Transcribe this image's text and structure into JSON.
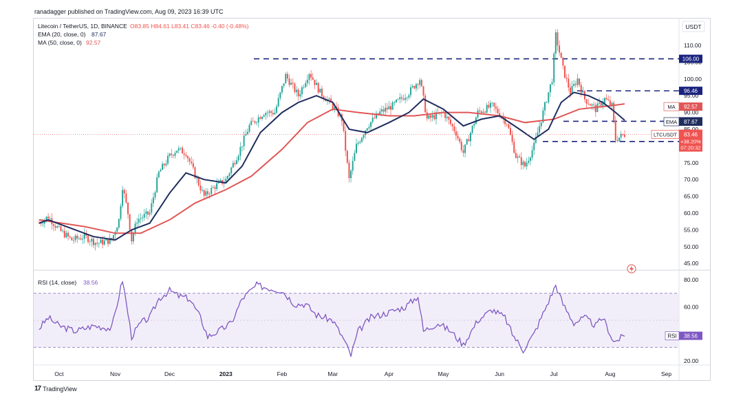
{
  "publisher": "ranadagger published on TradingView.com, Aug 09, 2023 16:39 UTC",
  "logo_text": "TradingView",
  "currency": "USDT",
  "header": {
    "symbol": "Litecoin / TetherUS, 1D, BINANCE",
    "ohlc": [
      {
        "label": "O",
        "value": "83.85"
      },
      {
        "label": "H",
        "value": "84.61"
      },
      {
        "label": "L",
        "value": "83.41"
      },
      {
        "label": "C",
        "value": "83.46"
      }
    ],
    "change": "-0.40 (-0.48%)",
    "ema_label": "EMA (20, close, 0)",
    "ema_value": "87.67",
    "ma_label": "MA (50, close, 0)",
    "ma_value": "92.57"
  },
  "rsi_panel": {
    "label": "RSI (14, close)",
    "value": "38.56",
    "tag": "RSI",
    "ticks": [
      "80.00",
      "60.00",
      "40.00",
      "20.00"
    ]
  },
  "colors": {
    "up": "#26a69a",
    "down": "#ef5350",
    "ema": "#1e2c5e",
    "ma": "#e05656",
    "levels": "#1a237e",
    "rsi": "#7e57c2"
  },
  "chart_data": [
    {
      "type": "candlestick",
      "x_ticks": [
        "Oct",
        "Nov",
        "Dec",
        "2023",
        "Feb",
        "Mar",
        "Apr",
        "May",
        "Jun",
        "Jul",
        "Aug",
        "Sep"
      ],
      "y_ticks": [
        "110.00",
        "105.00",
        "100.00",
        "95.00",
        "90.00",
        "85.00",
        "80.00",
        "75.00",
        "70.00",
        "65.00",
        "60.00",
        "55.00",
        "50.00",
        "45.00"
      ],
      "ylim": [
        43,
        118
      ],
      "price_tag": {
        "symbol": "LTCUSDT",
        "value": "83.46",
        "change": "+38.20%",
        "countdown": "07:20:32"
      },
      "ema_tag": {
        "name": "EMA",
        "value": "87.67"
      },
      "ma_tag": {
        "name": "MA",
        "value": "92.57"
      },
      "horizontal_levels": [
        {
          "value": 106.0,
          "label": "106.00"
        },
        {
          "value": 96.46,
          "label": "96.46"
        },
        {
          "value": 87.37,
          "label": "87.37"
        },
        {
          "value": 81.36,
          "label": "81.36"
        }
      ],
      "close_path": [
        [
          "2022-09-20",
          57
        ],
        [
          "2022-09-25",
          59
        ],
        [
          "2022-10-01",
          55
        ],
        [
          "2022-10-08",
          52
        ],
        [
          "2022-10-15",
          53
        ],
        [
          "2022-10-22",
          51
        ],
        [
          "2022-10-30",
          52
        ],
        [
          "2022-11-03",
          58
        ],
        [
          "2022-11-05",
          68
        ],
        [
          "2022-11-08",
          60
        ],
        [
          "2022-11-10",
          52
        ],
        [
          "2022-11-13",
          58
        ],
        [
          "2022-11-20",
          60
        ],
        [
          "2022-11-25",
          72
        ],
        [
          "2022-12-01",
          77
        ],
        [
          "2022-12-05",
          79
        ],
        [
          "2022-12-10",
          78
        ],
        [
          "2022-12-16",
          70
        ],
        [
          "2022-12-20",
          65
        ],
        [
          "2022-12-26",
          68
        ],
        [
          "2023-01-01",
          70
        ],
        [
          "2023-01-08",
          78
        ],
        [
          "2023-01-14",
          86
        ],
        [
          "2023-01-22",
          90
        ],
        [
          "2023-01-28",
          90
        ],
        [
          "2023-02-03",
          101
        ],
        [
          "2023-02-10",
          95
        ],
        [
          "2023-02-16",
          102
        ],
        [
          "2023-02-22",
          96
        ],
        [
          "2023-03-01",
          92
        ],
        [
          "2023-03-06",
          88
        ],
        [
          "2023-03-10",
          70
        ],
        [
          "2023-03-14",
          80
        ],
        [
          "2023-03-20",
          86
        ],
        [
          "2023-03-27",
          90
        ],
        [
          "2023-04-03",
          92
        ],
        [
          "2023-04-12",
          96
        ],
        [
          "2023-04-18",
          100
        ],
        [
          "2023-04-22",
          88
        ],
        [
          "2023-05-01",
          90
        ],
        [
          "2023-05-08",
          84
        ],
        [
          "2023-05-12",
          78
        ],
        [
          "2023-05-20",
          90
        ],
        [
          "2023-05-28",
          92
        ],
        [
          "2023-06-05",
          87
        ],
        [
          "2023-06-10",
          77
        ],
        [
          "2023-06-15",
          74
        ],
        [
          "2023-06-20",
          80
        ],
        [
          "2023-06-25",
          90
        ],
        [
          "2023-06-30",
          100
        ],
        [
          "2023-07-02",
          113
        ],
        [
          "2023-07-06",
          103
        ],
        [
          "2023-07-10",
          96
        ],
        [
          "2023-07-14",
          100
        ],
        [
          "2023-07-18",
          94
        ],
        [
          "2023-07-24",
          91
        ],
        [
          "2023-07-29",
          94
        ],
        [
          "2023-08-02",
          92
        ],
        [
          "2023-08-04",
          82
        ],
        [
          "2023-08-09",
          83.46
        ]
      ],
      "ema_path": [
        [
          "2022-09-20",
          57
        ],
        [
          "2022-09-25",
          58
        ],
        [
          "2022-10-05",
          56
        ],
        [
          "2022-10-20",
          53
        ],
        [
          "2022-11-01",
          52
        ],
        [
          "2022-11-10",
          55
        ],
        [
          "2022-11-20",
          57
        ],
        [
          "2022-12-01",
          66
        ],
        [
          "2022-12-10",
          72
        ],
        [
          "2022-12-20",
          70
        ],
        [
          "2023-01-01",
          69
        ],
        [
          "2023-01-10",
          74
        ],
        [
          "2023-01-20",
          84
        ],
        [
          "2023-02-01",
          90
        ],
        [
          "2023-02-10",
          93
        ],
        [
          "2023-02-20",
          95
        ],
        [
          "2023-03-01",
          93
        ],
        [
          "2023-03-10",
          85
        ],
        [
          "2023-03-20",
          84
        ],
        [
          "2023-04-01",
          87
        ],
        [
          "2023-04-12",
          90
        ],
        [
          "2023-04-20",
          94
        ],
        [
          "2023-05-01",
          91
        ],
        [
          "2023-05-12",
          86
        ],
        [
          "2023-05-22",
          88
        ],
        [
          "2023-06-01",
          89
        ],
        [
          "2023-06-12",
          85
        ],
        [
          "2023-06-20",
          82
        ],
        [
          "2023-06-28",
          85
        ],
        [
          "2023-07-05",
          93
        ],
        [
          "2023-07-12",
          96
        ],
        [
          "2023-07-20",
          95
        ],
        [
          "2023-07-28",
          93
        ],
        [
          "2023-08-04",
          90
        ],
        [
          "2023-08-09",
          87.67
        ]
      ],
      "ma_path": [
        [
          "2022-09-20",
          58
        ],
        [
          "2022-10-15",
          56
        ],
        [
          "2022-11-01",
          54
        ],
        [
          "2022-11-15",
          54
        ],
        [
          "2022-12-01",
          58
        ],
        [
          "2022-12-15",
          63
        ],
        [
          "2023-01-01",
          67
        ],
        [
          "2023-01-15",
          71
        ],
        [
          "2023-02-01",
          79
        ],
        [
          "2023-02-15",
          87
        ],
        [
          "2023-03-01",
          91
        ],
        [
          "2023-03-15",
          90
        ],
        [
          "2023-04-01",
          89
        ],
        [
          "2023-04-15",
          89
        ],
        [
          "2023-05-01",
          90
        ],
        [
          "2023-05-15",
          90
        ],
        [
          "2023-06-01",
          89
        ],
        [
          "2023-06-15",
          87
        ],
        [
          "2023-07-01",
          88
        ],
        [
          "2023-07-15",
          91
        ],
        [
          "2023-08-01",
          92
        ],
        [
          "2023-08-09",
          92.57
        ]
      ]
    },
    {
      "type": "line",
      "ylim": [
        20,
        80
      ],
      "band": [
        30,
        70
      ],
      "midline": 50,
      "series": [
        [
          "2022-09-20",
          44
        ],
        [
          "2022-09-25",
          52
        ],
        [
          "2022-10-01",
          46
        ],
        [
          "2022-10-10",
          42
        ],
        [
          "2022-10-20",
          46
        ],
        [
          "2022-10-30",
          44
        ],
        [
          "2022-11-05",
          80
        ],
        [
          "2022-11-08",
          55
        ],
        [
          "2022-11-10",
          38
        ],
        [
          "2022-11-15",
          48
        ],
        [
          "2022-11-20",
          52
        ],
        [
          "2022-11-25",
          66
        ],
        [
          "2022-12-01",
          72
        ],
        [
          "2022-12-06",
          68
        ],
        [
          "2022-12-12",
          66
        ],
        [
          "2022-12-18",
          52
        ],
        [
          "2022-12-22",
          38
        ],
        [
          "2022-12-28",
          42
        ],
        [
          "2023-01-04",
          48
        ],
        [
          "2023-01-10",
          66
        ],
        [
          "2023-01-18",
          76
        ],
        [
          "2023-01-24",
          74
        ],
        [
          "2023-02-01",
          72
        ],
        [
          "2023-02-08",
          62
        ],
        [
          "2023-02-14",
          62
        ],
        [
          "2023-02-20",
          54
        ],
        [
          "2023-03-01",
          50
        ],
        [
          "2023-03-07",
          36
        ],
        [
          "2023-03-11",
          24
        ],
        [
          "2023-03-15",
          42
        ],
        [
          "2023-03-22",
          52
        ],
        [
          "2023-04-01",
          56
        ],
        [
          "2023-04-10",
          60
        ],
        [
          "2023-04-17",
          68
        ],
        [
          "2023-04-20",
          42
        ],
        [
          "2023-04-28",
          48
        ],
        [
          "2023-05-05",
          42
        ],
        [
          "2023-05-12",
          32
        ],
        [
          "2023-05-20",
          50
        ],
        [
          "2023-05-28",
          58
        ],
        [
          "2023-06-04",
          52
        ],
        [
          "2023-06-08",
          40
        ],
        [
          "2023-06-14",
          28
        ],
        [
          "2023-06-20",
          40
        ],
        [
          "2023-06-26",
          58
        ],
        [
          "2023-07-02",
          76
        ],
        [
          "2023-07-06",
          62
        ],
        [
          "2023-07-12",
          48
        ],
        [
          "2023-07-18",
          52
        ],
        [
          "2023-07-24",
          46
        ],
        [
          "2023-07-28",
          52
        ],
        [
          "2023-08-03",
          34
        ],
        [
          "2023-08-09",
          38.56
        ]
      ]
    }
  ]
}
